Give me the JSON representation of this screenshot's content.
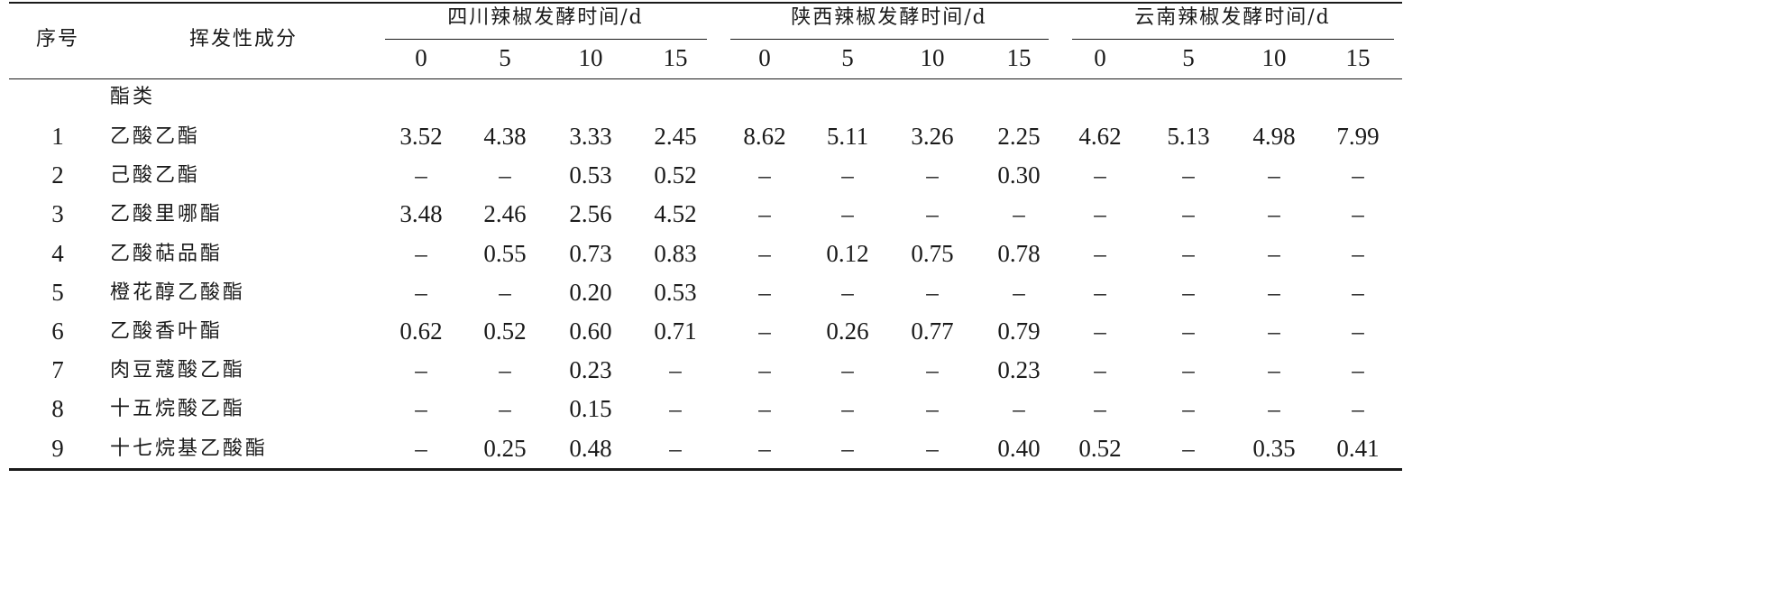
{
  "header": {
    "index_label": "序号",
    "component_label": "挥发性成分",
    "groups": [
      {
        "title": "四川辣椒发酵时间/d"
      },
      {
        "title": "陕西辣椒发酵时间/d"
      },
      {
        "title": "云南辣椒发酵时间/d"
      }
    ],
    "days": [
      "0",
      "5",
      "10",
      "15",
      "0",
      "5",
      "10",
      "15",
      "0",
      "5",
      "10",
      "15"
    ]
  },
  "category": "酯类",
  "rows": [
    {
      "no": "1",
      "name": "乙酸乙酯",
      "values": [
        "3.52",
        "4.38",
        "3.33",
        "2.45",
        "8.62",
        "5.11",
        "3.26",
        "2.25",
        "4.62",
        "5.13",
        "4.98",
        "7.99"
      ]
    },
    {
      "no": "2",
      "name": "己酸乙酯",
      "values": [
        "–",
        "–",
        "0.53",
        "0.52",
        "–",
        "–",
        "–",
        "0.30",
        "–",
        "–",
        "–",
        "–"
      ]
    },
    {
      "no": "3",
      "name": "乙酸里哪酯",
      "values": [
        "3.48",
        "2.46",
        "2.56",
        "4.52",
        "–",
        "–",
        "–",
        "–",
        "–",
        "–",
        "–",
        "–"
      ]
    },
    {
      "no": "4",
      "name": "乙酸萜品酯",
      "values": [
        "–",
        "0.55",
        "0.73",
        "0.83",
        "–",
        "0.12",
        "0.75",
        "0.78",
        "–",
        "–",
        "–",
        "–"
      ]
    },
    {
      "no": "5",
      "name": "橙花醇乙酸酯",
      "values": [
        "–",
        "–",
        "0.20",
        "0.53",
        "–",
        "–",
        "–",
        "–",
        "–",
        "–",
        "–",
        "–"
      ]
    },
    {
      "no": "6",
      "name": "乙酸香叶酯",
      "values": [
        "0.62",
        "0.52",
        "0.60",
        "0.71",
        "–",
        "0.26",
        "0.77",
        "0.79",
        "–",
        "–",
        "–",
        "–"
      ]
    },
    {
      "no": "7",
      "name": "肉豆蔻酸乙酯",
      "values": [
        "–",
        "–",
        "0.23",
        "–",
        "–",
        "–",
        "–",
        "0.23",
        "–",
        "–",
        "–",
        "–"
      ]
    },
    {
      "no": "8",
      "name": "十五烷酸乙酯",
      "values": [
        "–",
        "–",
        "0.15",
        "–",
        "–",
        "–",
        "–",
        "–",
        "–",
        "–",
        "–",
        "–"
      ]
    },
    {
      "no": "9",
      "name": "十七烷基乙酸酯",
      "values": [
        "–",
        "0.25",
        "0.48",
        "–",
        "–",
        "–",
        "–",
        "0.40",
        "0.52",
        "–",
        "0.35",
        "0.41"
      ]
    }
  ]
}
